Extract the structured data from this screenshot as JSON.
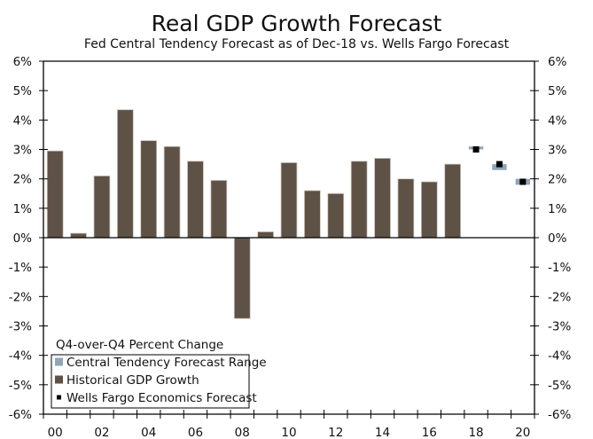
{
  "chart_data": {
    "type": "bar",
    "title": "Real GDP Growth Forecast",
    "subtitle": "Fed Central Tendency Forecast as of Dec-18 vs. Wells Fargo Forecast",
    "annotation": "Q4-over-Q4 Percent Change",
    "xlabel": "",
    "ylabel": "",
    "ylim": [
      -6,
      6
    ],
    "yticks": [
      6,
      5,
      4,
      3,
      2,
      1,
      0,
      -1,
      -2,
      -3,
      -4,
      -5,
      -6
    ],
    "ytick_labels": [
      "6%",
      "5%",
      "4%",
      "3%",
      "2%",
      "1%",
      "0%",
      "-1%",
      "-2%",
      "-3%",
      "-4%",
      "-5%",
      "-6%"
    ],
    "x_years": [
      2000,
      2001,
      2002,
      2003,
      2004,
      2005,
      2006,
      2007,
      2008,
      2009,
      2010,
      2011,
      2012,
      2013,
      2014,
      2015,
      2016,
      2017,
      2018,
      2019,
      2020
    ],
    "xtick_labels": [
      "00",
      "02",
      "04",
      "06",
      "08",
      "10",
      "12",
      "14",
      "16",
      "18",
      "20"
    ],
    "xtick_label_years": [
      2000,
      2002,
      2004,
      2006,
      2008,
      2010,
      2012,
      2014,
      2016,
      2018,
      2020
    ],
    "grid": false,
    "legend_position": "bottom-left",
    "series": [
      {
        "name": "Central Tendency Forecast Range",
        "kind": "range",
        "color": "#8fa5b8",
        "x": [
          2018,
          2019,
          2020
        ],
        "low": [
          3.0,
          2.3,
          1.8
        ],
        "high": [
          3.1,
          2.5,
          2.0
        ]
      },
      {
        "name": "Historical GDP Growth",
        "kind": "bar",
        "color": "#5e5246",
        "x": [
          2000,
          2001,
          2002,
          2003,
          2004,
          2005,
          2006,
          2007,
          2008,
          2009,
          2010,
          2011,
          2012,
          2013,
          2014,
          2015,
          2016,
          2017
        ],
        "values": [
          2.95,
          0.15,
          2.1,
          4.35,
          3.3,
          3.1,
          2.6,
          1.95,
          -2.75,
          0.2,
          2.55,
          1.6,
          1.5,
          2.6,
          2.7,
          2.0,
          1.9,
          2.5
        ]
      },
      {
        "name": "Wells Fargo Economics Forecast",
        "kind": "marker",
        "color": "#000000",
        "x": [
          2018,
          2019,
          2020
        ],
        "values": [
          3.0,
          2.5,
          1.9
        ]
      }
    ]
  }
}
